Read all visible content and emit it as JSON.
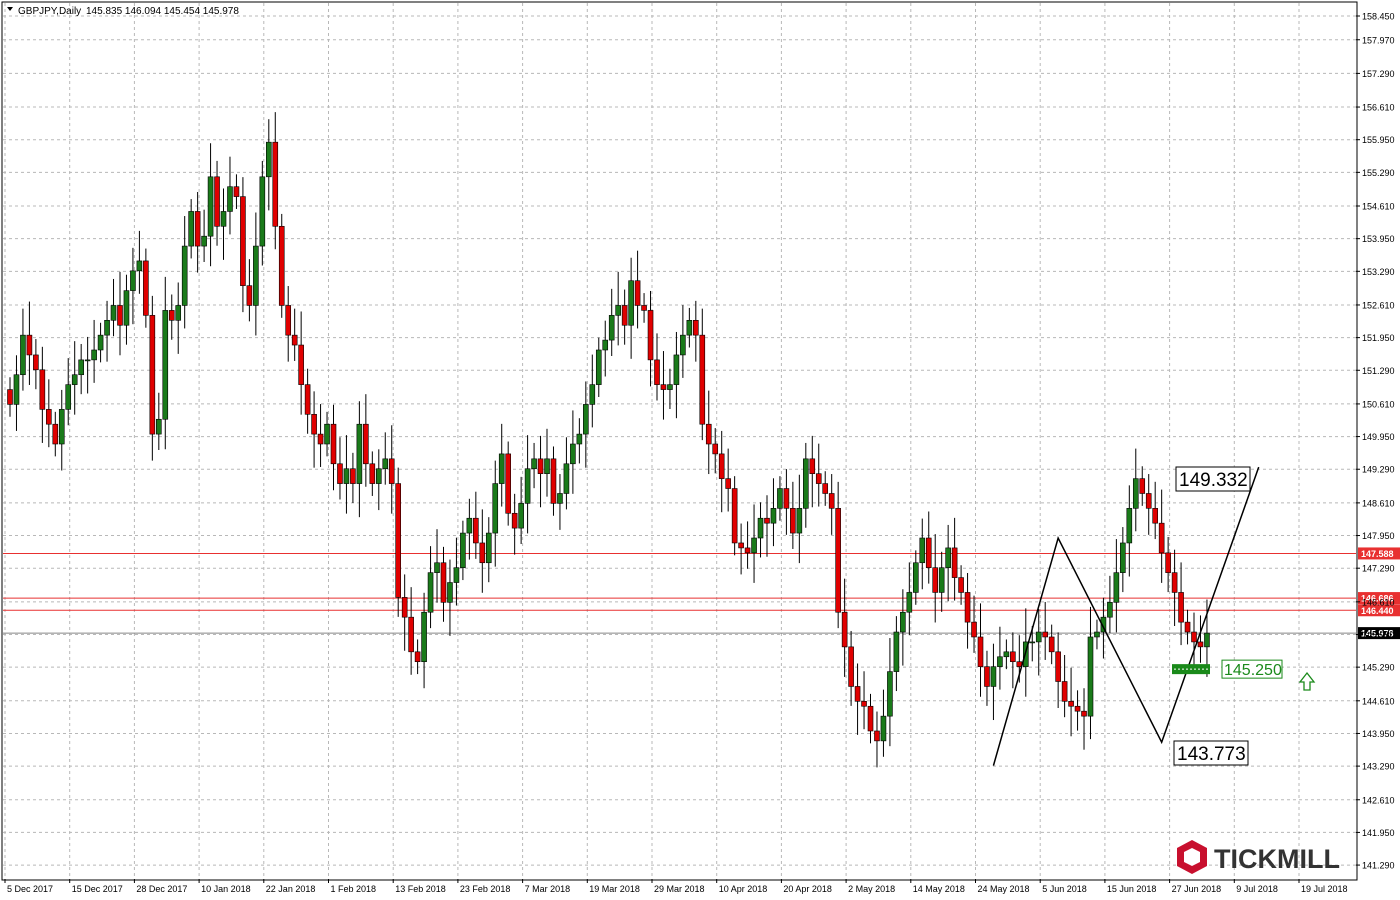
{
  "header": {
    "symbol_label": "GBPJPY,Daily",
    "ohlc_label": "145.835 146.094 145.454 145.978"
  },
  "colors": {
    "bull": "#1a7a1a",
    "bear": "#e00000",
    "grid": "#b8b8b8",
    "level_line": "#e83030",
    "price_line": "#888888",
    "zigzag": "#000000",
    "annotation_green": "#1a8a1a",
    "logo_red": "#c8102e"
  },
  "chart_data": {
    "type": "candlestick",
    "title": "GBPJPY,Daily",
    "ylim": [
      141.15,
      158.45
    ],
    "y_ticks": [
      "158.450",
      "157.970",
      "157.290",
      "156.610",
      "155.950",
      "155.290",
      "154.610",
      "153.950",
      "153.290",
      "152.610",
      "151.950",
      "151.290",
      "150.610",
      "149.950",
      "149.290",
      "148.610",
      "147.950",
      "147.290",
      "146.610",
      "145.950",
      "145.290",
      "144.610",
      "143.950",
      "143.290",
      "142.610",
      "141.950",
      "141.290"
    ],
    "x_labels": [
      "5 Dec 2017",
      "15 Dec 2017",
      "28 Dec 2017",
      "10 Jan 2018",
      "22 Jan 2018",
      "1 Feb 2018",
      "13 Feb 2018",
      "23 Feb 2018",
      "7 Mar 2018",
      "19 Mar 2018",
      "29 Mar 2018",
      "10 Apr 2018",
      "20 Apr 2018",
      "2 May 2018",
      "14 May 2018",
      "24 May 2018",
      "5 Jun 2018",
      "15 Jun 2018",
      "27 Jun 2018",
      "9 Jul 2018",
      "19 Jul 2018"
    ],
    "x_label_index": [
      0,
      10,
      20,
      30,
      40,
      50,
      60,
      70,
      80,
      90,
      100,
      110,
      120,
      130,
      140,
      150,
      160,
      170,
      180,
      190,
      200
    ],
    "candles_close": [
      150.6,
      151.2,
      152.0,
      151.6,
      151.3,
      150.5,
      150.2,
      149.8,
      150.5,
      151.0,
      151.2,
      151.5,
      151.5,
      151.7,
      152.0,
      152.3,
      152.6,
      152.2,
      152.9,
      153.3,
      153.5,
      152.4,
      150.0,
      150.3,
      152.5,
      152.3,
      152.6,
      153.8,
      154.5,
      153.8,
      154.0,
      155.2,
      154.2,
      154.5,
      155.0,
      154.8,
      153.0,
      152.6,
      153.8,
      155.2,
      155.9,
      154.2,
      152.6,
      152.0,
      151.8,
      151.0,
      150.4,
      150.0,
      149.8,
      150.2,
      149.4,
      149.0,
      149.3,
      149.0,
      150.2,
      149.4,
      149.0,
      149.3,
      149.5,
      149.0,
      146.7,
      146.3,
      145.6,
      145.4,
      146.4,
      147.2,
      147.4,
      146.6,
      147.0,
      147.3,
      148.0,
      148.3,
      147.8,
      147.4,
      148.0,
      149.0,
      149.6,
      148.4,
      148.1,
      148.6,
      149.3,
      149.5,
      149.2,
      149.5,
      148.6,
      148.8,
      149.4,
      149.8,
      150.0,
      150.6,
      151.0,
      151.7,
      151.9,
      152.4,
      152.6,
      152.2,
      153.1,
      152.6,
      152.5,
      151.5,
      151.0,
      150.9,
      151.0,
      151.6,
      152.0,
      152.3,
      152.0,
      150.2,
      149.8,
      149.6,
      149.1,
      148.9,
      147.8,
      147.7,
      147.6,
      147.9,
      148.3,
      148.2,
      148.5,
      148.9,
      148.5,
      148.0,
      148.5,
      149.5,
      149.2,
      149.0,
      148.8,
      148.5,
      146.4,
      145.7,
      144.9,
      144.6,
      144.5,
      144.0,
      143.8,
      144.3,
      145.2,
      146.0,
      146.4,
      146.8,
      147.4,
      147.9,
      147.3,
      146.8,
      147.3,
      147.7,
      147.1,
      146.8,
      146.2,
      145.9,
      145.3,
      144.9,
      145.3,
      145.5,
      145.6,
      145.4,
      145.3,
      145.8,
      145.8,
      146.0,
      145.9,
      145.6,
      145.0,
      144.6,
      144.5,
      144.4,
      144.3,
      145.9,
      146.0,
      146.3,
      146.6,
      147.2,
      147.8,
      148.5,
      149.1,
      148.8,
      148.5,
      148.2,
      147.6,
      147.2,
      146.8,
      146.2,
      146.0,
      145.8,
      145.7,
      145.978
    ],
    "levels": [
      {
        "value": 147.588,
        "label": "147.588"
      },
      {
        "value": 146.686,
        "label": "146.686"
      },
      {
        "value": 146.44,
        "label": "146.440"
      }
    ],
    "current_price": {
      "value": 145.978,
      "label": "145.978"
    },
    "annotations": [
      {
        "text": "149.332",
        "value": 149.332
      },
      {
        "text": "143.773",
        "value": 143.773
      },
      {
        "text": "145.250",
        "value": 145.25
      }
    ],
    "zigzag": [
      {
        "i": 152,
        "value": 143.3
      },
      {
        "i": 162,
        "value": 147.9
      },
      {
        "i": 178,
        "value": 143.773
      },
      {
        "i": 193,
        "value": 149.332
      }
    ]
  },
  "logo": {
    "text": "TICKMILL"
  }
}
